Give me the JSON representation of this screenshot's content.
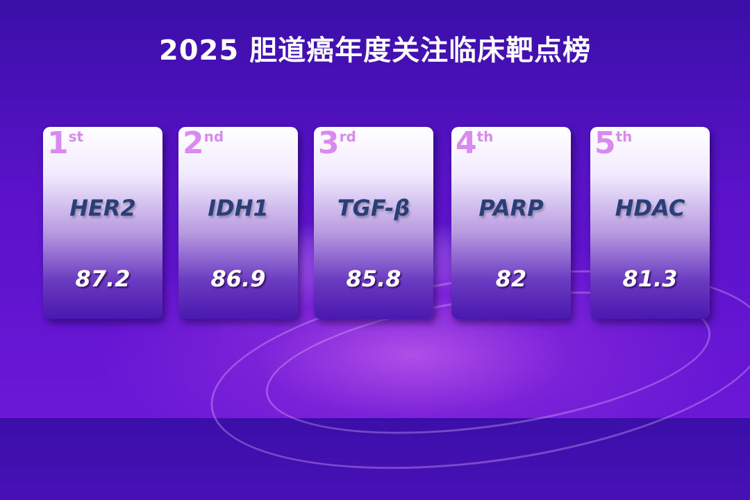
{
  "title": "2025 胆道癌年度关注临床靶点榜",
  "cards": [
    {
      "rank": "1",
      "suffix": "st",
      "target": "HER2",
      "score": "87.2"
    },
    {
      "rank": "2",
      "suffix": "nd",
      "target": "IDH1",
      "score": "86.9"
    },
    {
      "rank": "3",
      "suffix": "rd",
      "target": "TGF-β",
      "score": "85.8"
    },
    {
      "rank": "4",
      "suffix": "th",
      "target": "PARP",
      "score": "82"
    },
    {
      "rank": "5",
      "suffix": "th",
      "target": "HDAC",
      "score": "81.3"
    }
  ]
}
